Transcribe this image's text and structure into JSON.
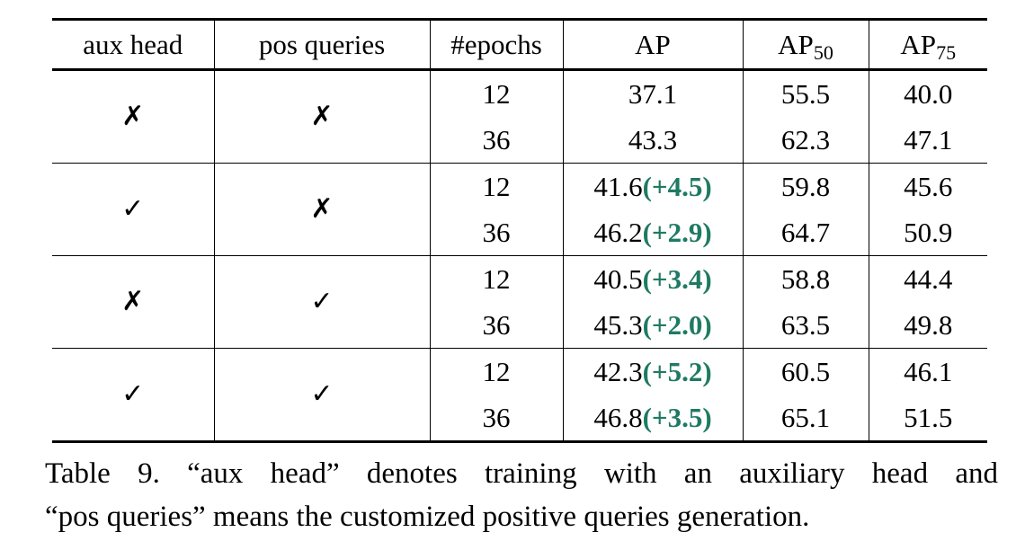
{
  "table": {
    "headers": {
      "aux_head": "aux head",
      "pos_queries": "pos queries",
      "epochs": "#epochs",
      "ap": "AP",
      "ap50_base": "AP",
      "ap50_sub": "50",
      "ap75_base": "AP",
      "ap75_sub": "75"
    },
    "groups": [
      {
        "aux_head": "✗",
        "pos_queries": "✗",
        "rows": [
          {
            "epochs": "12",
            "ap": "37.1",
            "gain": "",
            "ap50": "55.5",
            "ap75": "40.0"
          },
          {
            "epochs": "36",
            "ap": "43.3",
            "gain": "",
            "ap50": "62.3",
            "ap75": "47.1"
          }
        ]
      },
      {
        "aux_head": "✓",
        "pos_queries": "✗",
        "rows": [
          {
            "epochs": "12",
            "ap": "41.6",
            "gain": "(+4.5)",
            "ap50": "59.8",
            "ap75": "45.6"
          },
          {
            "epochs": "36",
            "ap": "46.2",
            "gain": "(+2.9)",
            "ap50": "64.7",
            "ap75": "50.9"
          }
        ]
      },
      {
        "aux_head": "✗",
        "pos_queries": "✓",
        "rows": [
          {
            "epochs": "12",
            "ap": "40.5",
            "gain": "(+3.4)",
            "ap50": "58.8",
            "ap75": "44.4"
          },
          {
            "epochs": "36",
            "ap": "45.3",
            "gain": "(+2.0)",
            "ap50": "63.5",
            "ap75": "49.8"
          }
        ]
      },
      {
        "aux_head": "✓",
        "pos_queries": "✓",
        "rows": [
          {
            "epochs": "12",
            "ap": "42.3",
            "gain": "(+5.2)",
            "ap50": "60.5",
            "ap75": "46.1"
          },
          {
            "epochs": "36",
            "ap": "46.8",
            "gain": "(+3.5)",
            "ap50": "65.1",
            "ap75": "51.5"
          }
        ]
      }
    ]
  },
  "caption": {
    "line1": "Table 9.  “aux head” denotes training with an auxiliary head and",
    "line2": "“pos queries” means the customized positive queries generation."
  },
  "colors": {
    "gain": "#1f7a63"
  }
}
